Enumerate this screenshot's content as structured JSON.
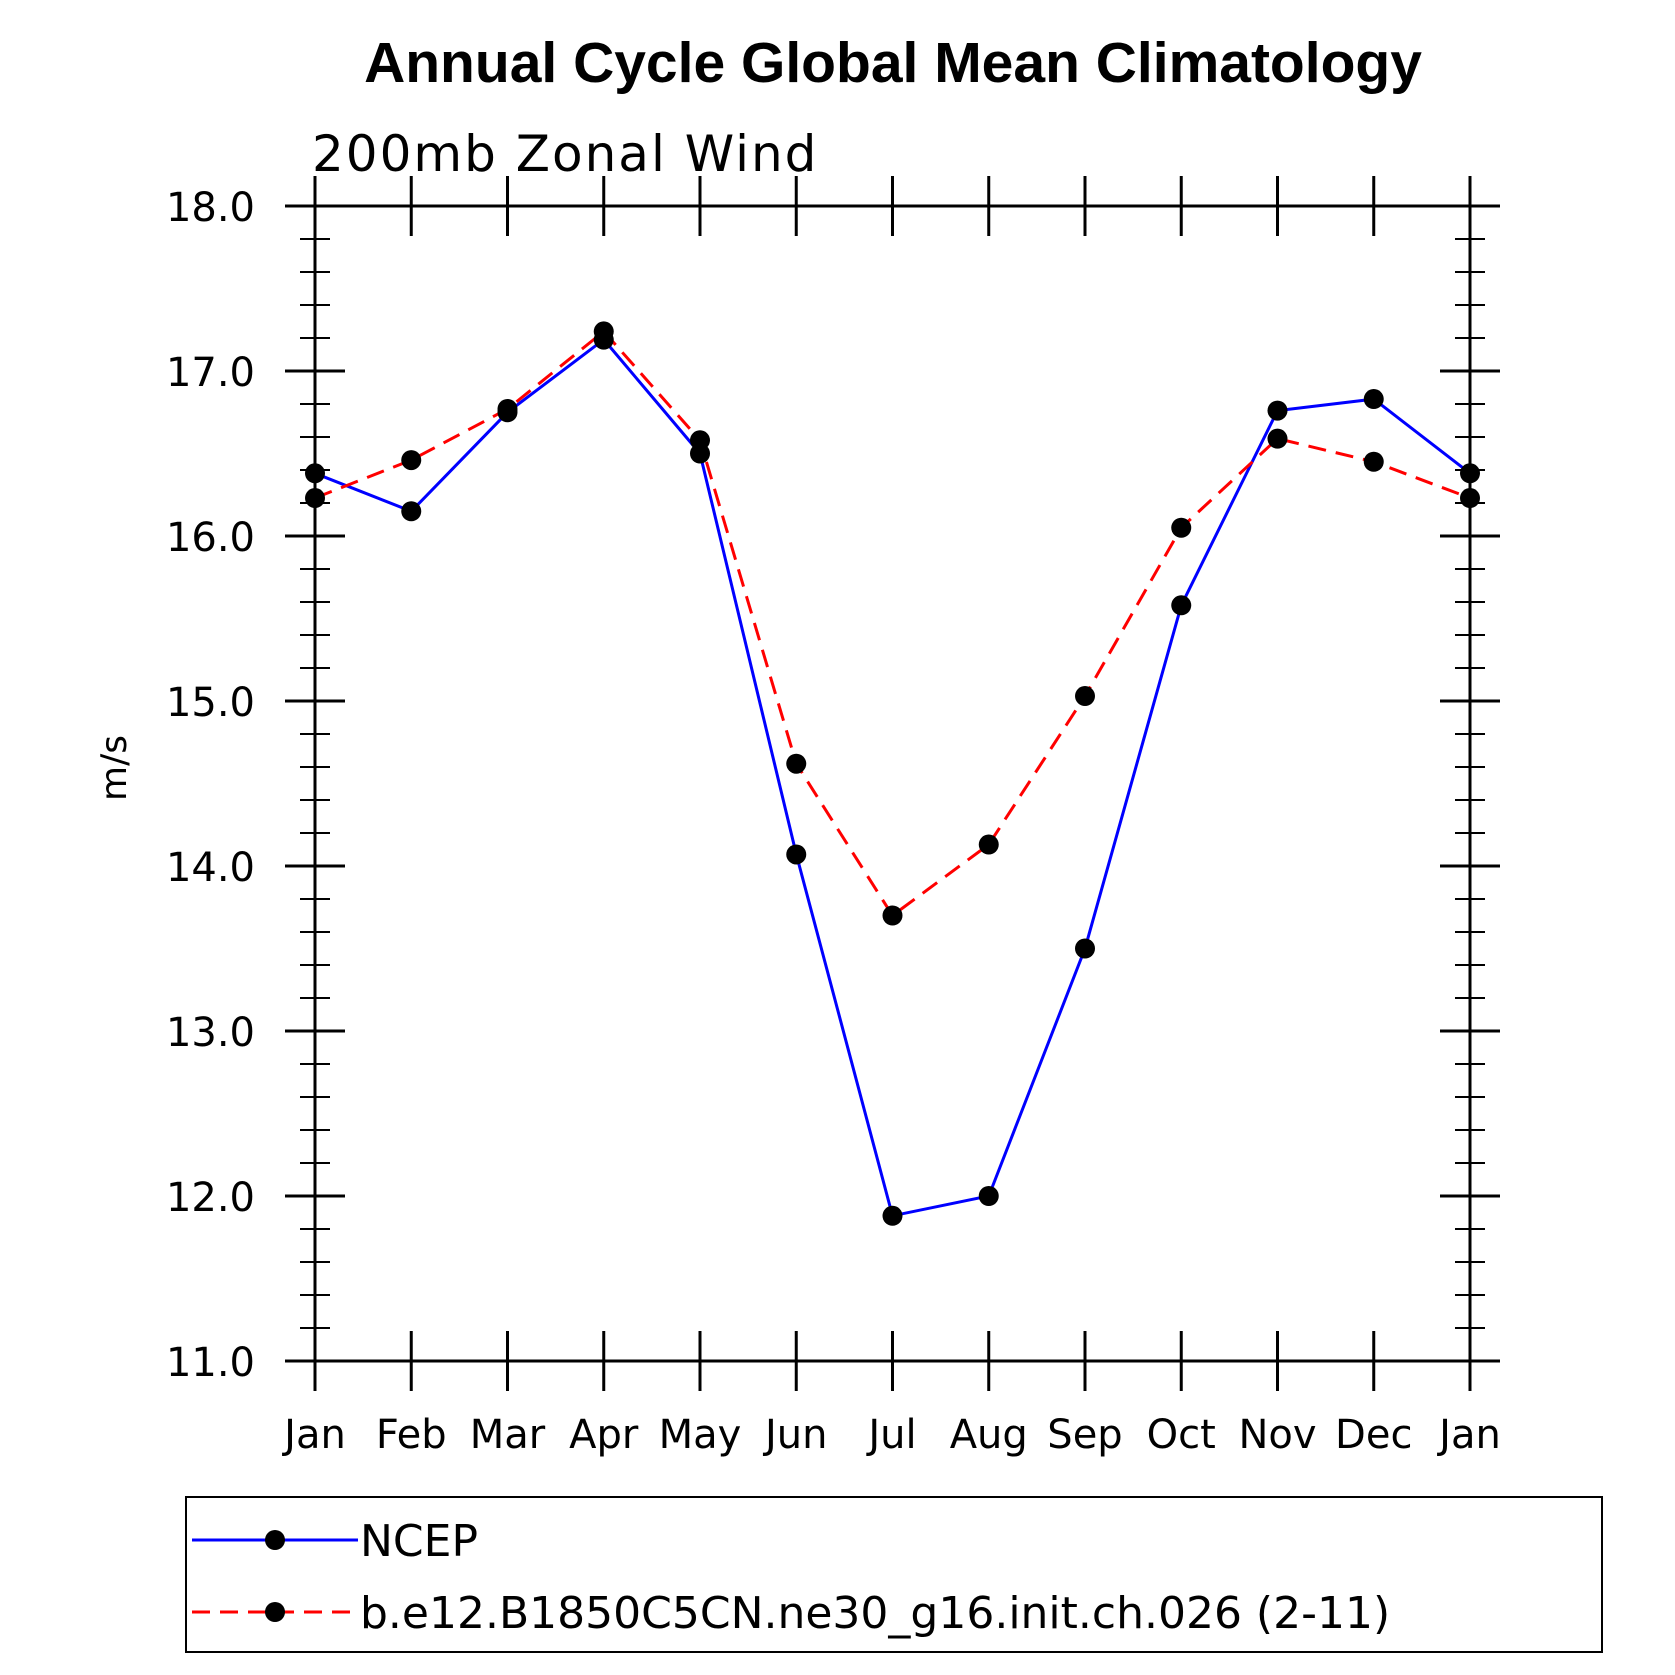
{
  "chart_data": {
    "type": "line",
    "title": "Annual Cycle Global Mean Climatology",
    "subtitle": "200mb  Zonal  Wind",
    "xlabel": "",
    "ylabel": "m/s",
    "categories": [
      "Jan",
      "Feb",
      "Mar",
      "Apr",
      "May",
      "Jun",
      "Jul",
      "Aug",
      "Sep",
      "Oct",
      "Nov",
      "Dec",
      "Jan"
    ],
    "ylim": [
      11.0,
      18.0
    ],
    "yticks": [
      "11.0",
      "12.0",
      "13.0",
      "14.0",
      "15.0",
      "16.0",
      "17.0",
      "18.0"
    ],
    "grid": false,
    "legend_position": "bottom",
    "series": [
      {
        "name": "NCEP",
        "color": "#0000ff",
        "dash": "solid",
        "values": [
          16.38,
          16.15,
          16.75,
          17.19,
          16.5,
          14.07,
          11.88,
          12.0,
          13.5,
          15.58,
          16.76,
          16.83,
          16.38
        ]
      },
      {
        "name": "b.e12.B1850C5CN.ne30_g16.init.ch.026 (2-11)",
        "color": "#ff0000",
        "dash": "dashed",
        "values": [
          16.23,
          16.46,
          16.77,
          17.24,
          16.58,
          14.62,
          13.7,
          14.13,
          15.03,
          16.05,
          16.59,
          16.45,
          16.23
        ]
      }
    ]
  }
}
